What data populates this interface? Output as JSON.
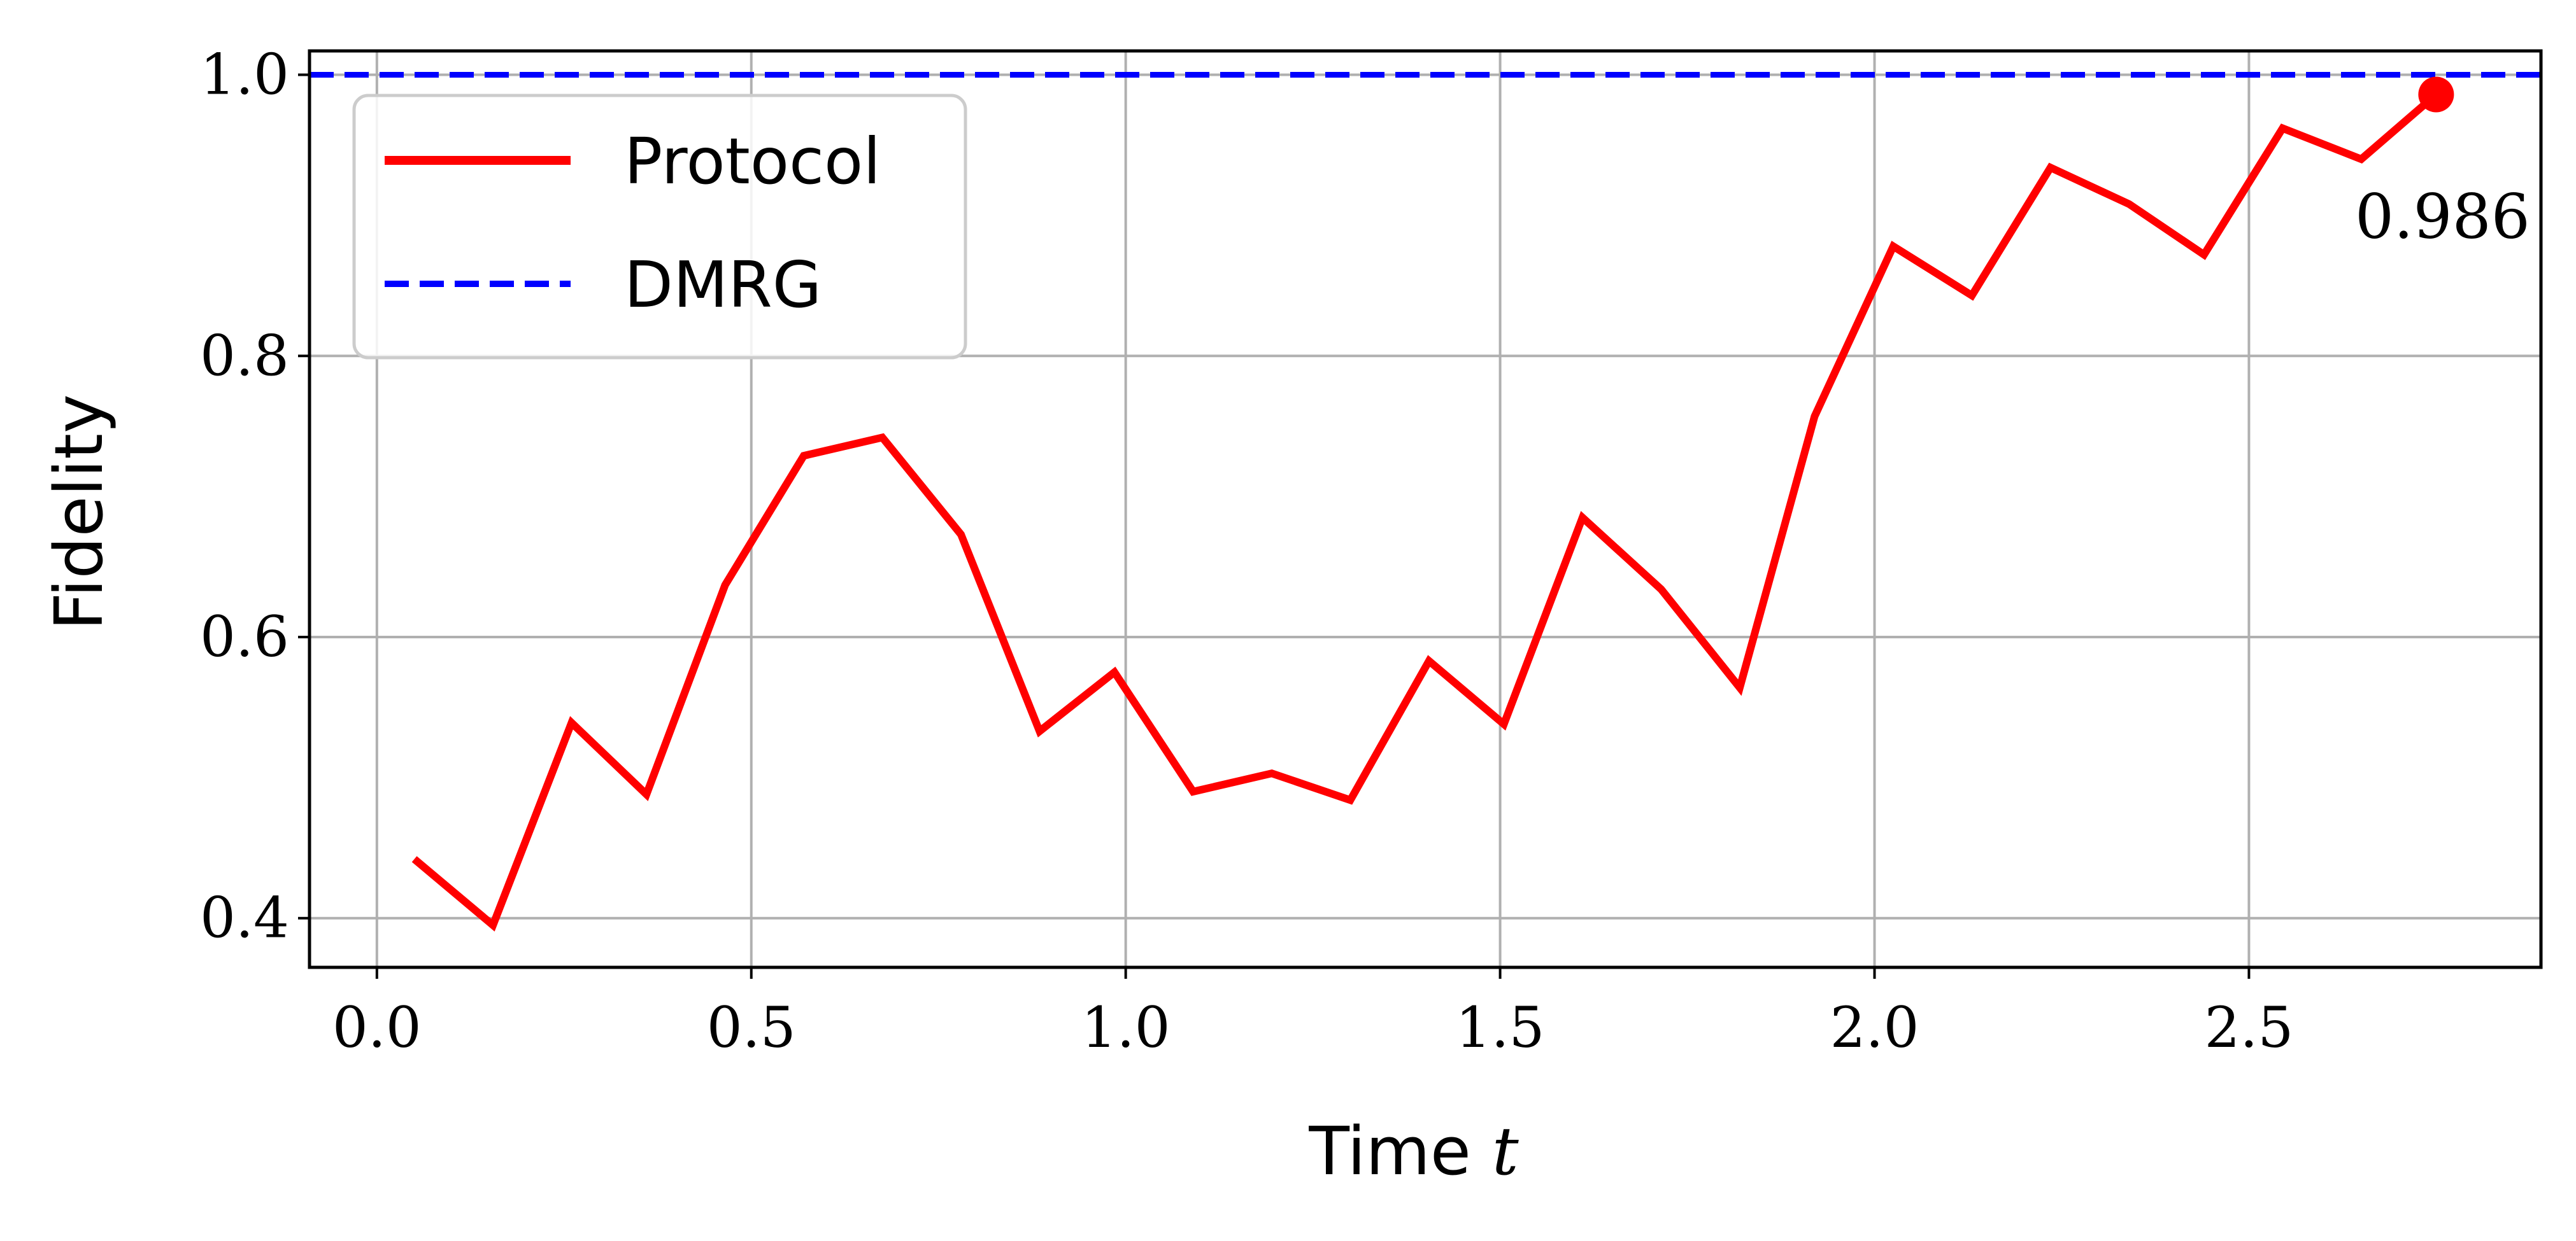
{
  "chart_data": {
    "type": "line",
    "xlabel": "Time",
    "xlabel_var": "t",
    "ylabel": "Fidelity",
    "xlim": [
      -0.09,
      2.89
    ],
    "ylim": [
      0.365,
      1.017
    ],
    "xticks": [
      0.0,
      0.5,
      1.0,
      1.5,
      2.0,
      2.5
    ],
    "xtick_labels": [
      "0.0",
      "0.5",
      "1.0",
      "1.5",
      "2.0",
      "2.5"
    ],
    "yticks": [
      0.4,
      0.6,
      0.8,
      1.0
    ],
    "ytick_labels": [
      "0.4",
      "0.6",
      "0.8",
      "1.0"
    ],
    "grid": true,
    "legend_position": "top-left",
    "series": [
      {
        "name": "Protocol",
        "color": "#ff0000",
        "style": "solid",
        "x": [
          0.05,
          0.155,
          0.26,
          0.36,
          0.465,
          0.57,
          0.675,
          0.78,
          0.885,
          0.985,
          1.09,
          1.195,
          1.3,
          1.405,
          1.505,
          1.61,
          1.715,
          1.82,
          1.92,
          2.025,
          2.13,
          2.235,
          2.34,
          2.44,
          2.545,
          2.65,
          2.75
        ],
        "values": [
          0.442,
          0.395,
          0.539,
          0.488,
          0.637,
          0.729,
          0.742,
          0.673,
          0.533,
          0.575,
          0.49,
          0.503,
          0.484,
          0.583,
          0.538,
          0.685,
          0.634,
          0.564,
          0.757,
          0.878,
          0.843,
          0.934,
          0.908,
          0.872,
          0.962,
          0.94,
          0.986
        ]
      },
      {
        "name": "DMRG",
        "color": "#0000ff",
        "style": "dashed",
        "hline": 1.0
      }
    ],
    "annotations": [
      {
        "text": "0.986",
        "x": 2.75,
        "y": 0.986,
        "marker": true,
        "color": "#ff0000"
      }
    ]
  }
}
